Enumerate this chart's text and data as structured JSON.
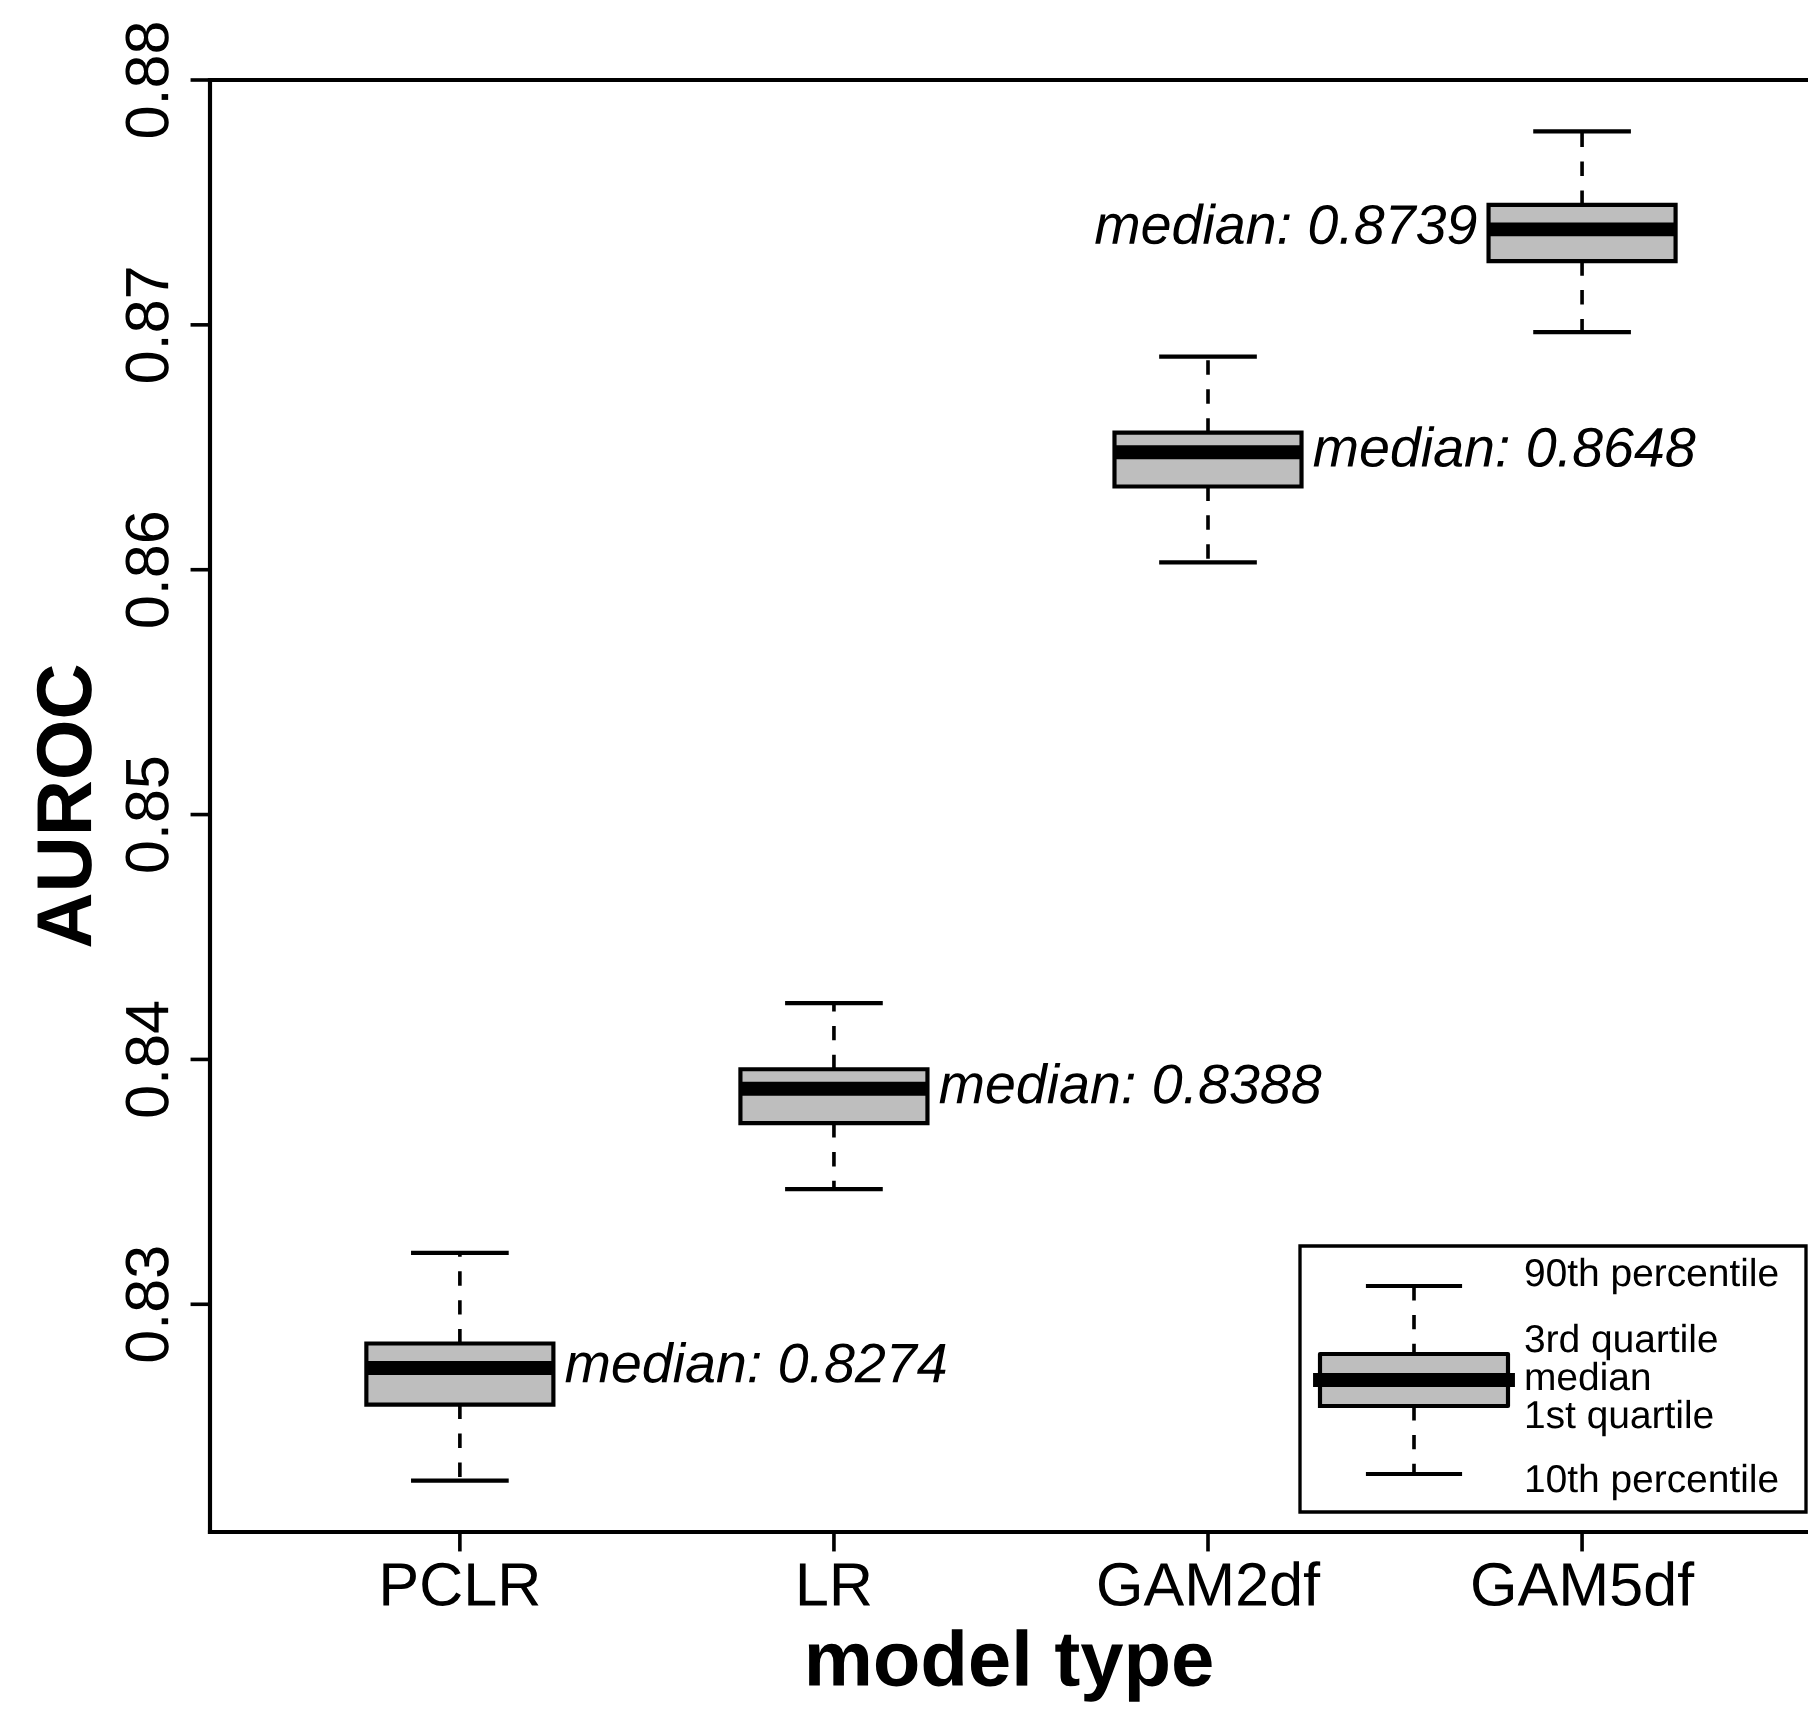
{
  "chart_data": {
    "type": "box",
    "xlabel": "model type",
    "ylabel": "AUROC",
    "categories": [
      "PCLR",
      "LR",
      "GAM2df",
      "GAM5df"
    ],
    "series": [
      {
        "color": "#bebebe",
        "boxes": [
          {
            "low": 0.8228,
            "q1": 0.8259,
            "median": 0.8274,
            "q3": 0.8284,
            "high": 0.8321
          },
          {
            "low": 0.8347,
            "q1": 0.8374,
            "median": 0.8388,
            "q3": 0.8396,
            "high": 0.8423
          },
          {
            "low": 0.8603,
            "q1": 0.8634,
            "median": 0.8648,
            "q3": 0.8656,
            "high": 0.8687
          },
          {
            "low": 0.8697,
            "q1": 0.8726,
            "median": 0.8739,
            "q3": 0.8749,
            "high": 0.8779
          }
        ]
      }
    ],
    "ylim": [
      0.8207,
      0.88
    ],
    "yticks": [
      0.83,
      0.84,
      0.85,
      0.86,
      0.87,
      0.88
    ],
    "grid": false,
    "annotations": [
      {
        "text": "median: 0.8274",
        "x": "PCLR",
        "y": 0.8274
      },
      {
        "text": "median: 0.8388",
        "x": "LR",
        "y": 0.8388
      },
      {
        "text": "median: 0.8648",
        "x": "GAM2df",
        "y": 0.8648
      },
      {
        "text": "median: 0.8739",
        "x": "GAM5df",
        "y": 0.8739
      },
      "90th percentile",
      "3rd quartile",
      "median",
      "1st quartile",
      "10th percentile"
    ]
  }
}
